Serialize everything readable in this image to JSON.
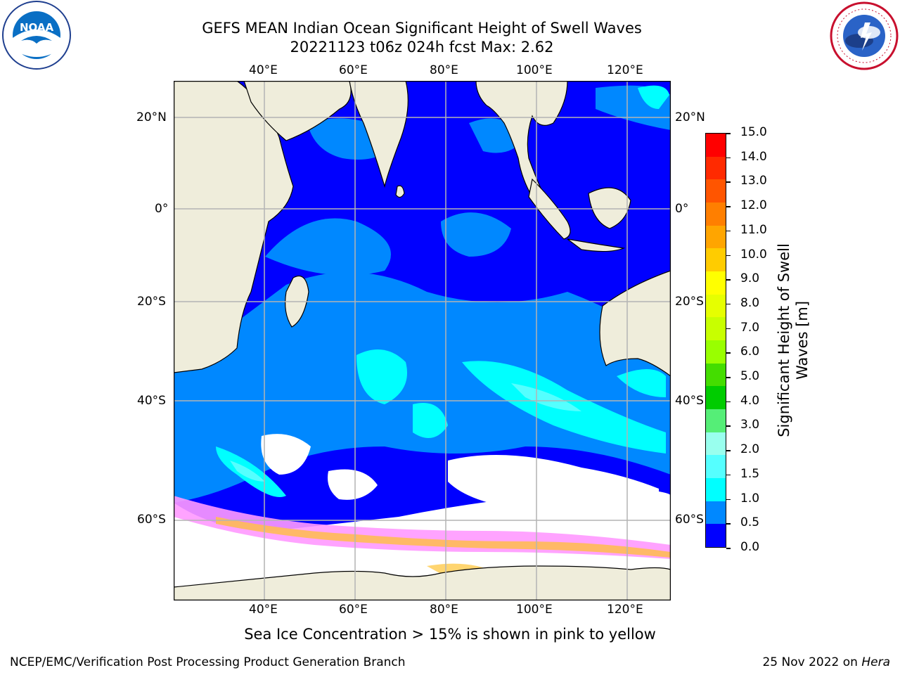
{
  "header": {
    "title_line1": "GEFS MEAN Indian Ocean Significant Height of Swell Waves",
    "title_line2": "20221123 t06z 024h fcst   Max: 2.62"
  },
  "logos": {
    "noara_text": "NOAA",
    "noaa_ring": "NATIONAL OCEANIC AND ATMOSPHERIC ADMINISTRATION",
    "noaa_ring_bottom": "U.S. DEPARTMENT OF COMMERCE",
    "nws_ring": "NATIONAL WEATHER SERVICE"
  },
  "map": {
    "lon_labels": [
      "40°E",
      "60°E",
      "80°E",
      "100°E",
      "120°E"
    ],
    "lat_labels": [
      "20°N",
      "0°",
      "20°S",
      "40°S",
      "60°S"
    ],
    "colors": {
      "land": "#efeddb",
      "grid": "#b4b4b4",
      "ice_mask": "#ffffff"
    }
  },
  "colorbar": {
    "label_line1": "Significant Height of Swell",
    "label_line2": "Waves [m]",
    "ticks": [
      "15.0",
      "14.0",
      "13.0",
      "12.0",
      "11.0",
      "10.0",
      "9.0",
      "8.0",
      "7.0",
      "6.0",
      "5.0",
      "4.0",
      "3.0",
      "2.0",
      "1.5",
      "1.0",
      "0.5",
      "0.0"
    ],
    "colors_top_to_bottom": [
      "#ff0000",
      "#ff2a00",
      "#ff5500",
      "#ff7f00",
      "#ffa500",
      "#ffcc00",
      "#ffff00",
      "#e6ff00",
      "#c8ff00",
      "#99ff00",
      "#44dd00",
      "#00cc00",
      "#55ee77",
      "#99ffee",
      "#55ffff",
      "#00ffff",
      "#0088ff",
      "#0000ff"
    ]
  },
  "footer": {
    "ice_note": "Sea Ice Concentration > 15% is shown in pink to yellow",
    "left": "NCEP/EMC/Verification Post Processing Product Generation Branch",
    "right_prefix": "25 Nov 2022 on ",
    "right_italic": "Hera"
  }
}
